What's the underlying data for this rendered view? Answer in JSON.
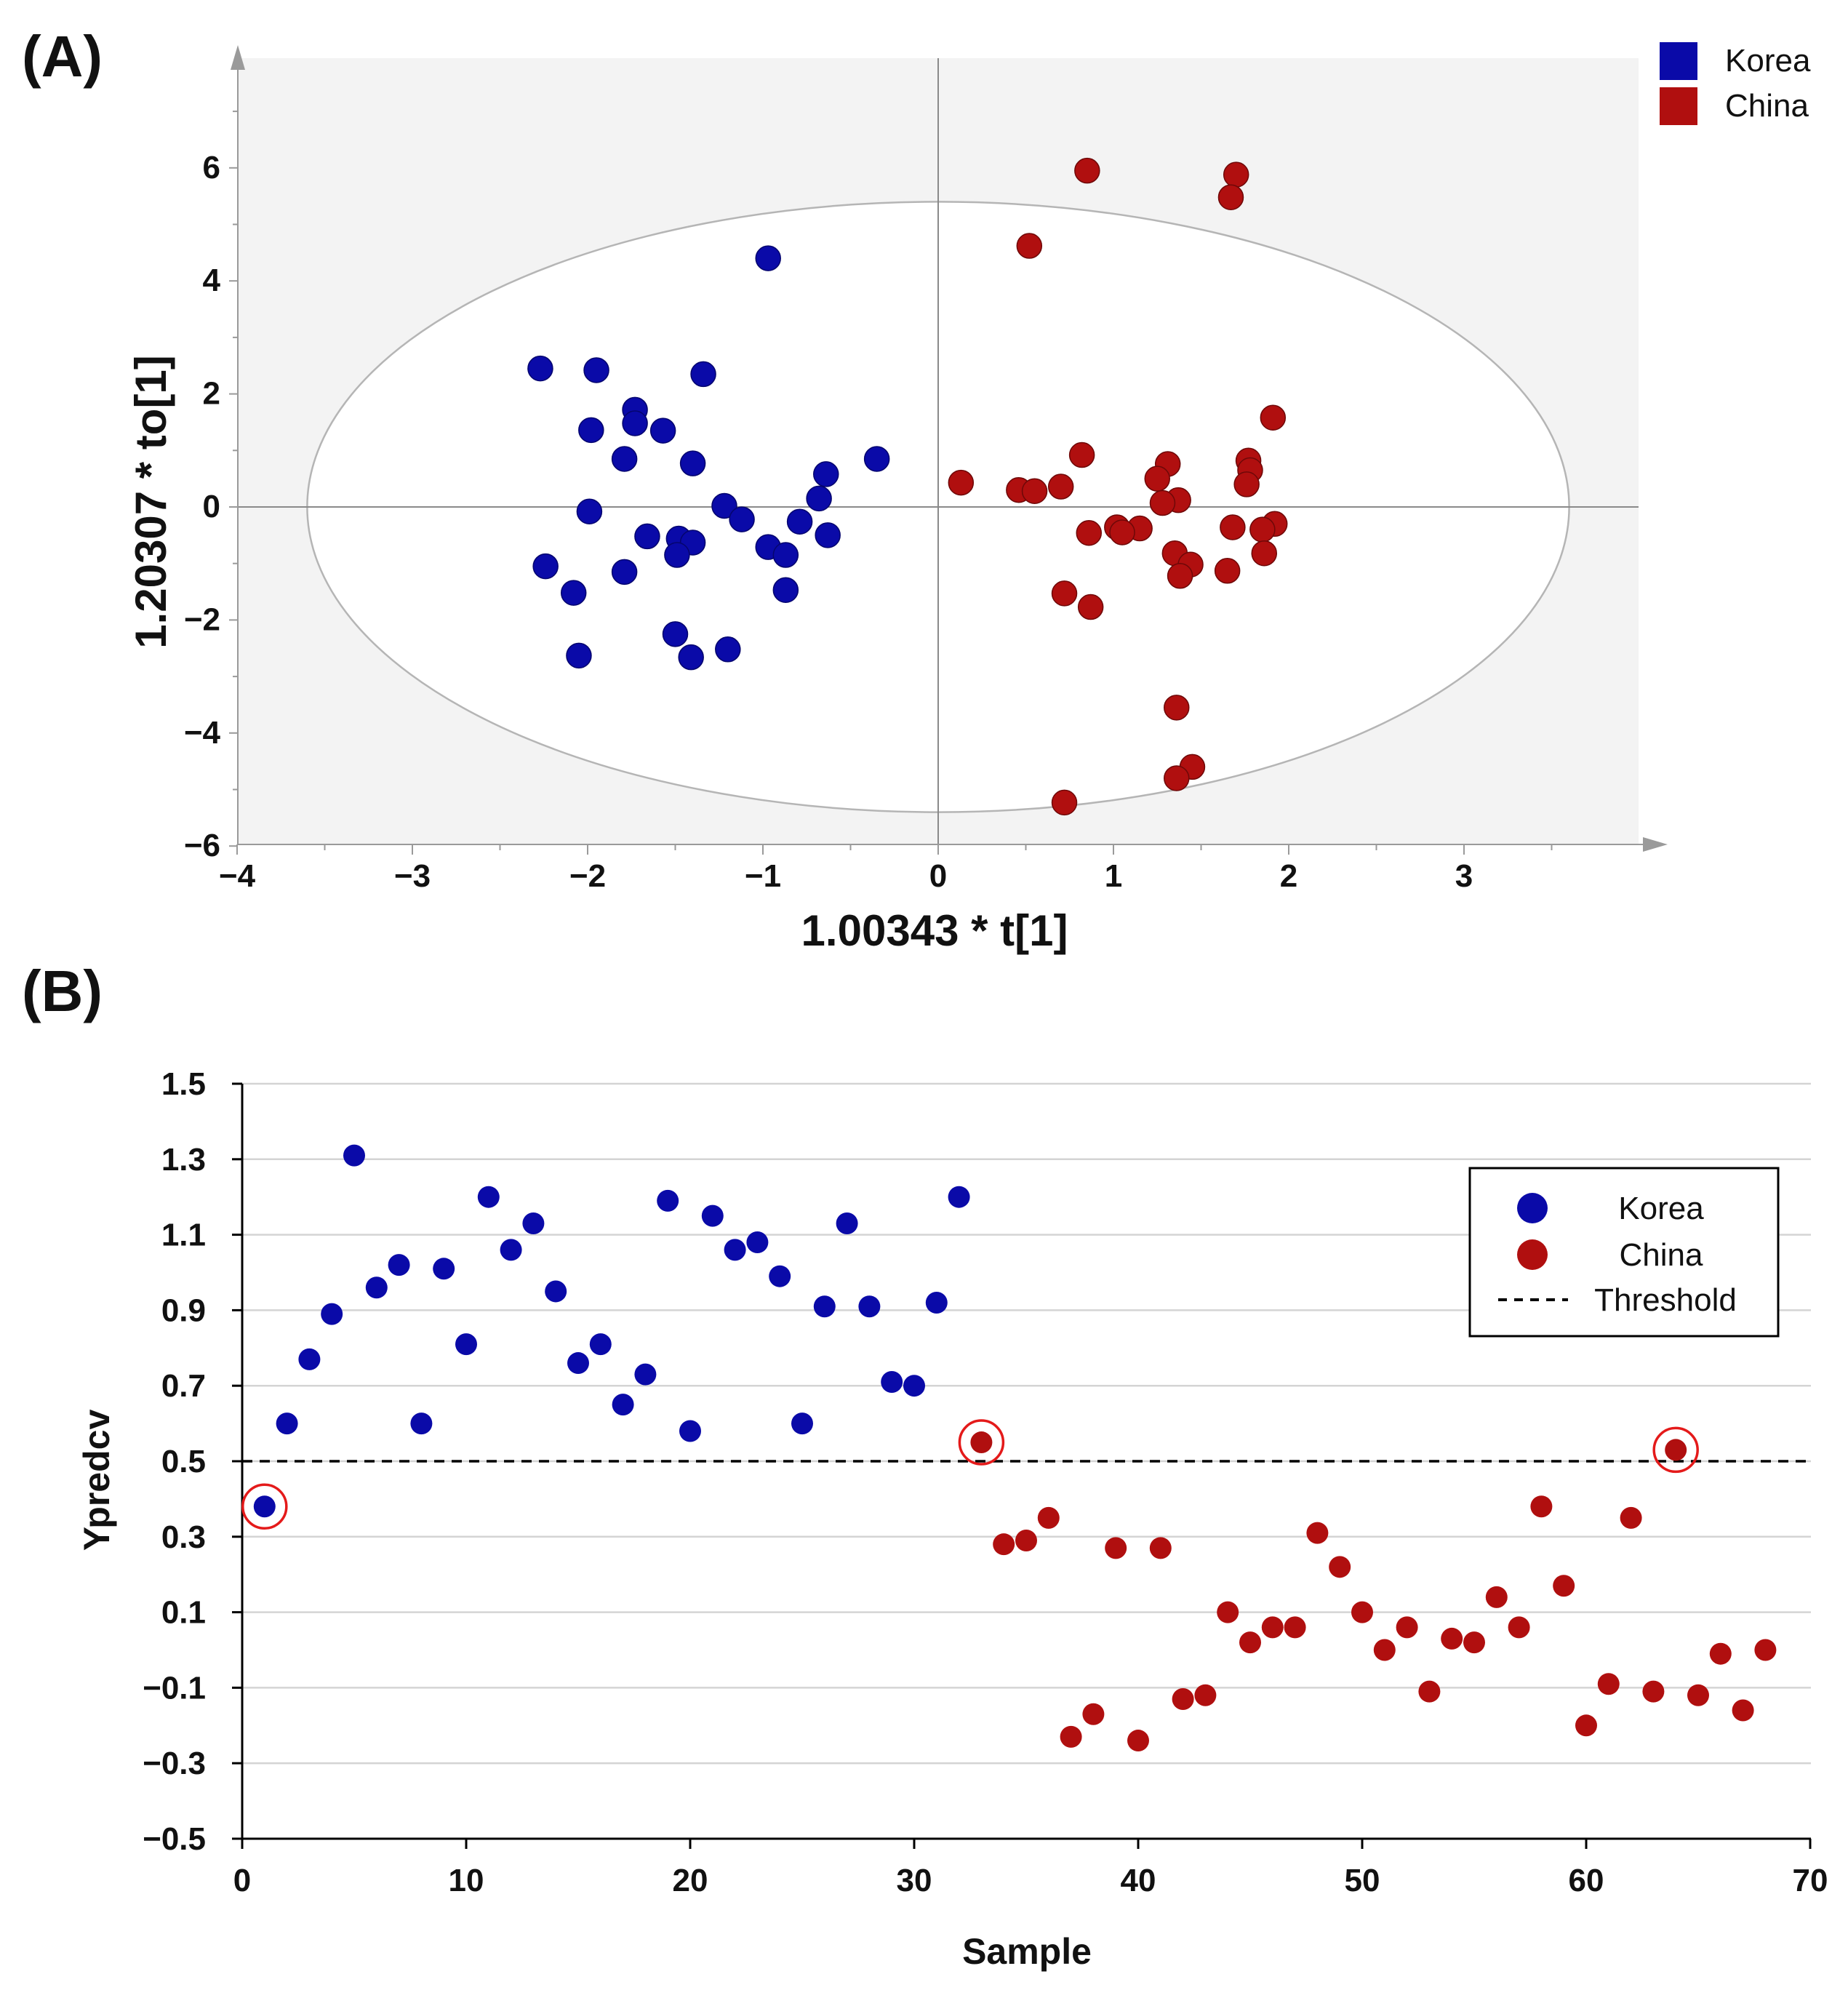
{
  "chart_data": [
    {
      "panel_label": "(A)",
      "type": "scatter",
      "xlabel": "1.00343 * t[1]",
      "ylabel": "1.20307 * to[1]",
      "xlim": [
        -4,
        4
      ],
      "ylim": [
        -6,
        7.5
      ],
      "xticks": [
        "−4",
        "−3",
        "−2",
        "−1",
        "0",
        "1",
        "2",
        "3"
      ],
      "yticks": [
        "−6",
        "−4",
        "−2",
        "0",
        "2",
        "4",
        "6"
      ],
      "grid": false,
      "legend_position": "top-right",
      "ellipse": {
        "cx": 0,
        "cy": 0,
        "rx": 3.6,
        "ry": 5.4
      },
      "series": [
        {
          "name": "Korea",
          "color": "#0a0aa8",
          "points": [
            [
              -0.97,
              4.4
            ],
            [
              -2.27,
              2.45
            ],
            [
              -1.95,
              2.42
            ],
            [
              -1.34,
              2.35
            ],
            [
              -1.73,
              1.72
            ],
            [
              -1.98,
              1.36
            ],
            [
              -1.73,
              1.48
            ],
            [
              -1.57,
              1.35
            ],
            [
              -1.79,
              0.85
            ],
            [
              -1.4,
              0.77
            ],
            [
              -0.35,
              0.85
            ],
            [
              -0.64,
              0.58
            ],
            [
              -0.68,
              0.15
            ],
            [
              -1.22,
              0.02
            ],
            [
              -1.12,
              -0.22
            ],
            [
              -0.79,
              -0.26
            ],
            [
              -1.99,
              -0.08
            ],
            [
              -1.66,
              -0.52
            ],
            [
              -1.48,
              -0.56
            ],
            [
              -1.4,
              -0.63
            ],
            [
              -0.97,
              -0.71
            ],
            [
              -0.87,
              -0.85
            ],
            [
              -1.49,
              -0.85
            ],
            [
              -0.63,
              -0.5
            ],
            [
              -2.24,
              -1.05
            ],
            [
              -1.79,
              -1.15
            ],
            [
              -0.87,
              -1.47
            ],
            [
              -2.08,
              -1.52
            ],
            [
              -1.5,
              -2.25
            ],
            [
              -1.2,
              -2.52
            ],
            [
              -2.05,
              -2.63
            ],
            [
              -1.41,
              -2.66
            ]
          ]
        },
        {
          "name": "China",
          "color": "#b00f0f",
          "points": [
            [
              0.85,
              5.95
            ],
            [
              1.7,
              5.88
            ],
            [
              1.67,
              5.48
            ],
            [
              0.52,
              4.62
            ],
            [
              1.91,
              1.58
            ],
            [
              0.82,
              0.92
            ],
            [
              1.77,
              0.82
            ],
            [
              1.31,
              0.76
            ],
            [
              1.78,
              0.65
            ],
            [
              1.25,
              0.5
            ],
            [
              0.13,
              0.43
            ],
            [
              1.76,
              0.4
            ],
            [
              0.7,
              0.36
            ],
            [
              0.46,
              0.3
            ],
            [
              0.55,
              0.28
            ],
            [
              1.37,
              0.12
            ],
            [
              1.28,
              0.07
            ],
            [
              1.92,
              -0.3
            ],
            [
              1.85,
              -0.4
            ],
            [
              1.68,
              -0.36
            ],
            [
              1.15,
              -0.38
            ],
            [
              1.02,
              -0.36
            ],
            [
              1.05,
              -0.45
            ],
            [
              0.86,
              -0.46
            ],
            [
              1.35,
              -0.82
            ],
            [
              1.86,
              -0.82
            ],
            [
              1.44,
              -1.02
            ],
            [
              1.65,
              -1.13
            ],
            [
              1.38,
              -1.22
            ],
            [
              0.72,
              -1.53
            ],
            [
              0.87,
              -1.77
            ],
            [
              1.36,
              -3.55
            ],
            [
              1.45,
              -4.6
            ],
            [
              1.36,
              -4.8
            ],
            [
              0.72,
              -5.23
            ]
          ]
        }
      ]
    },
    {
      "panel_label": "(B)",
      "type": "scatter",
      "xlabel": "Sample",
      "ylabel": "Ypredcv",
      "xlim": [
        0,
        70
      ],
      "ylim": [
        -0.5,
        1.5
      ],
      "xticks": [
        "0",
        "10",
        "20",
        "30",
        "40",
        "50",
        "60",
        "70"
      ],
      "yticks": [
        "1.5",
        "1.3",
        "1.1",
        "0.9",
        "0.7",
        "0.5",
        "0.3",
        "0.1",
        "−0.1",
        "−0.3",
        "−0.5"
      ],
      "grid": true,
      "legend_position": "top-right",
      "threshold": {
        "name": "Threshold",
        "y": 0.5
      },
      "circled_samples": [
        1,
        33,
        64
      ],
      "series": [
        {
          "name": "Korea",
          "color": "#0a0aa8",
          "points": [
            [
              1,
              0.38
            ],
            [
              2,
              0.6
            ],
            [
              3,
              0.77
            ],
            [
              4,
              0.89
            ],
            [
              5,
              1.31
            ],
            [
              6,
              0.96
            ],
            [
              7,
              1.02
            ],
            [
              8,
              0.6
            ],
            [
              9,
              1.01
            ],
            [
              10,
              0.81
            ],
            [
              11,
              1.2
            ],
            [
              12,
              1.06
            ],
            [
              13,
              1.13
            ],
            [
              14,
              0.95
            ],
            [
              15,
              0.76
            ],
            [
              16,
              0.81
            ],
            [
              17,
              0.65
            ],
            [
              18,
              0.73
            ],
            [
              19,
              1.19
            ],
            [
              20,
              0.58
            ],
            [
              21,
              1.15
            ],
            [
              22,
              1.06
            ],
            [
              23,
              1.08
            ],
            [
              24,
              0.99
            ],
            [
              25,
              0.6
            ],
            [
              26,
              0.91
            ],
            [
              27,
              1.13
            ],
            [
              28,
              0.91
            ],
            [
              29,
              0.71
            ],
            [
              30,
              0.7
            ],
            [
              31,
              0.92
            ],
            [
              32,
              1.2
            ]
          ]
        },
        {
          "name": "China",
          "color": "#b00f0f",
          "points": [
            [
              33,
              0.55
            ],
            [
              34,
              0.28
            ],
            [
              35,
              0.29
            ],
            [
              36,
              0.35
            ],
            [
              37,
              -0.23
            ],
            [
              38,
              -0.17
            ],
            [
              39,
              0.27
            ],
            [
              40,
              -0.24
            ],
            [
              41,
              0.27
            ],
            [
              42,
              -0.13
            ],
            [
              43,
              -0.12
            ],
            [
              44,
              0.1
            ],
            [
              45,
              0.02
            ],
            [
              46,
              0.06
            ],
            [
              47,
              0.06
            ],
            [
              48,
              0.31
            ],
            [
              49,
              0.22
            ],
            [
              50,
              0.1
            ],
            [
              51,
              0.0
            ],
            [
              52,
              0.06
            ],
            [
              53,
              -0.11
            ],
            [
              54,
              0.03
            ],
            [
              55,
              0.02
            ],
            [
              56,
              0.14
            ],
            [
              57,
              0.06
            ],
            [
              58,
              0.38
            ],
            [
              59,
              0.17
            ],
            [
              60,
              -0.2
            ],
            [
              61,
              -0.09
            ],
            [
              62,
              0.35
            ],
            [
              63,
              -0.11
            ],
            [
              64,
              0.53
            ],
            [
              65,
              -0.12
            ],
            [
              66,
              -0.01
            ],
            [
              67,
              -0.16
            ],
            [
              68,
              0.0
            ]
          ]
        }
      ]
    }
  ]
}
